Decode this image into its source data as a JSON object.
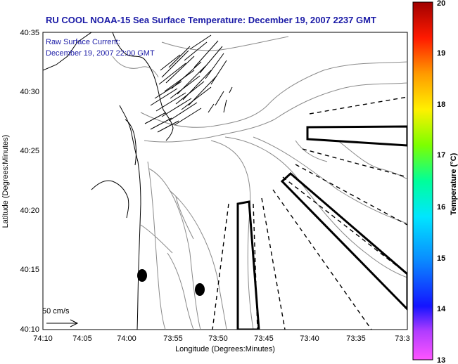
{
  "title": "RU COOL  NOAA-15  Sea Surface Temperature:  December 19, 2007 2237 GMT",
  "subtitle": {
    "line1": "Raw Surface Current:",
    "line2": "December 19, 2007 22:00 GMT"
  },
  "axes": {
    "xlabel": "Longitude (Degrees:Minutes)",
    "ylabel": "Latitude (Degrees:Minutes)",
    "xticks": [
      "74:10",
      "74:05",
      "74:00",
      "73:55",
      "73:50",
      "73:45",
      "73:40",
      "73:35",
      "73:3"
    ],
    "yticks": [
      "40:35",
      "40:30",
      "40:25",
      "40:20",
      "40:15",
      "40:10"
    ]
  },
  "colorbar": {
    "label": "Temperature (°C)",
    "ticks": [
      "20",
      "19",
      "18",
      "17",
      "16",
      "15",
      "14",
      "13"
    ],
    "range": [
      13,
      20
    ]
  },
  "scale_label": "50 cm/s",
  "colors": {
    "title": "#1a1aa6",
    "contour": "#8a8a8a",
    "coast": "#000000"
  }
}
